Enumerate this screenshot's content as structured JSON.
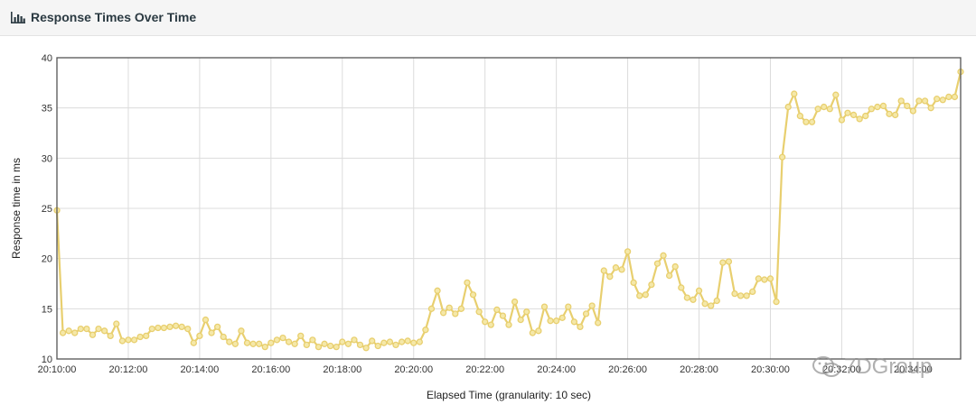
{
  "panel": {
    "title": "Response Times Over Time",
    "icon": "bar-chart-icon"
  },
  "watermark": {
    "text": "7DGroup",
    "icon": "wechat-icon"
  },
  "colors": {
    "series": "#e8cf6f",
    "marker_fill": "#f5e8a8",
    "grid": "#dcdcdc",
    "frame": "#555555"
  },
  "chart_data": {
    "type": "line",
    "xlabel": "Elapsed Time (granularity: 10 sec)",
    "ylabel": "Response time in ms",
    "ylim": [
      10,
      40
    ],
    "y_ticks": [
      10,
      15,
      20,
      25,
      30,
      35,
      40
    ],
    "x_start": "20:10:00",
    "granularity_sec": 10,
    "x_ticks": [
      "20:10:00",
      "20:12:00",
      "20:14:00",
      "20:16:00",
      "20:18:00",
      "20:20:00",
      "20:22:00",
      "20:24:00",
      "20:26:00",
      "20:28:00",
      "20:30:00",
      "20:32:00",
      "20:34:00"
    ],
    "grid": true,
    "legend": "none",
    "series": [
      {
        "values": [
          24.8,
          12.6,
          12.8,
          12.6,
          13.0,
          13.0,
          12.4,
          13.0,
          12.8,
          12.3,
          13.5,
          11.8,
          11.9,
          11.9,
          12.2,
          12.3,
          13.0,
          13.1,
          13.1,
          13.2,
          13.3,
          13.2,
          13.0,
          11.6,
          12.3,
          13.9,
          12.6,
          13.2,
          12.2,
          11.7,
          11.5,
          12.8,
          11.6,
          11.5,
          11.5,
          11.2,
          11.6,
          11.9,
          12.1,
          11.7,
          11.5,
          12.3,
          11.4,
          11.9,
          11.2,
          11.5,
          11.3,
          11.2,
          11.7,
          11.5,
          11.9,
          11.4,
          11.1,
          11.8,
          11.3,
          11.6,
          11.7,
          11.4,
          11.7,
          11.8,
          11.6,
          11.7,
          12.9,
          15.0,
          16.8,
          14.6,
          15.1,
          14.5,
          15.0,
          17.6,
          16.4,
          14.7,
          13.7,
          13.4,
          14.9,
          14.3,
          13.4,
          15.7,
          13.9,
          14.7,
          12.6,
          12.8,
          15.2,
          13.8,
          13.8,
          14.1,
          15.2,
          13.7,
          13.2,
          14.5,
          15.3,
          13.6,
          18.8,
          18.2,
          19.1,
          18.9,
          20.7,
          17.6,
          16.3,
          16.4,
          17.4,
          19.5,
          20.3,
          18.3,
          19.2,
          17.1,
          16.1,
          15.9,
          16.8,
          15.5,
          15.3,
          15.8,
          19.6,
          19.7,
          16.5,
          16.3,
          16.3,
          16.7,
          18.0,
          17.9,
          18.0,
          15.7,
          30.1,
          35.1,
          36.4,
          34.2,
          33.6,
          33.6,
          34.9,
          35.1,
          34.9,
          36.3,
          33.8,
          34.5,
          34.3,
          33.9,
          34.2,
          34.9,
          35.1,
          35.2,
          34.4,
          34.3,
          35.7,
          35.2,
          34.7,
          35.7,
          35.7,
          35.0,
          35.9,
          35.8,
          36.1,
          36.1,
          38.6
        ]
      }
    ]
  }
}
